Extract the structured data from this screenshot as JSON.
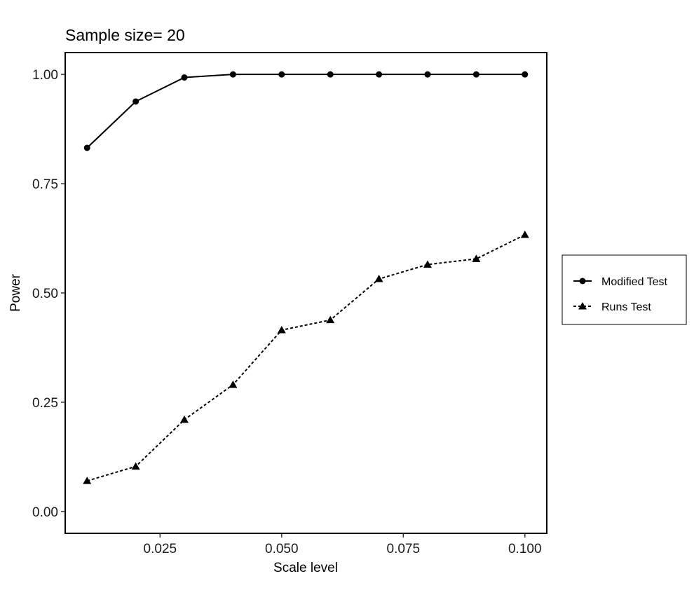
{
  "chart_data": {
    "type": "line",
    "title": "Sample size= 20",
    "xlabel": "Scale level",
    "ylabel": "Power",
    "xlim": [
      0.0055,
      0.1045
    ],
    "ylim": [
      -0.05,
      1.05
    ],
    "x_ticks": [
      0.025,
      0.05,
      0.075,
      0.1
    ],
    "x_tick_labels": [
      "0.025",
      "0.050",
      "0.075",
      "0.100"
    ],
    "y_ticks": [
      0,
      0.25,
      0.5,
      0.75,
      1.0
    ],
    "y_tick_labels": [
      "0.00",
      "0.25",
      "0.50",
      "0.75",
      "1.00"
    ],
    "grid": false,
    "legend_position": "right",
    "x": [
      0.01,
      0.02,
      0.03,
      0.04,
      0.05,
      0.06,
      0.07,
      0.08,
      0.09,
      0.1
    ],
    "series": [
      {
        "name": "Modified Test",
        "marker": "circle",
        "line": "solid",
        "values": [
          0.832,
          0.938,
          0.993,
          1.0,
          1.0,
          1.0,
          1.0,
          1.0,
          1.0,
          1.0
        ]
      },
      {
        "name": "Runs Test",
        "marker": "triangle",
        "line": "dashed",
        "values": [
          0.07,
          0.103,
          0.21,
          0.29,
          0.415,
          0.438,
          0.532,
          0.565,
          0.578,
          0.633
        ]
      }
    ]
  }
}
